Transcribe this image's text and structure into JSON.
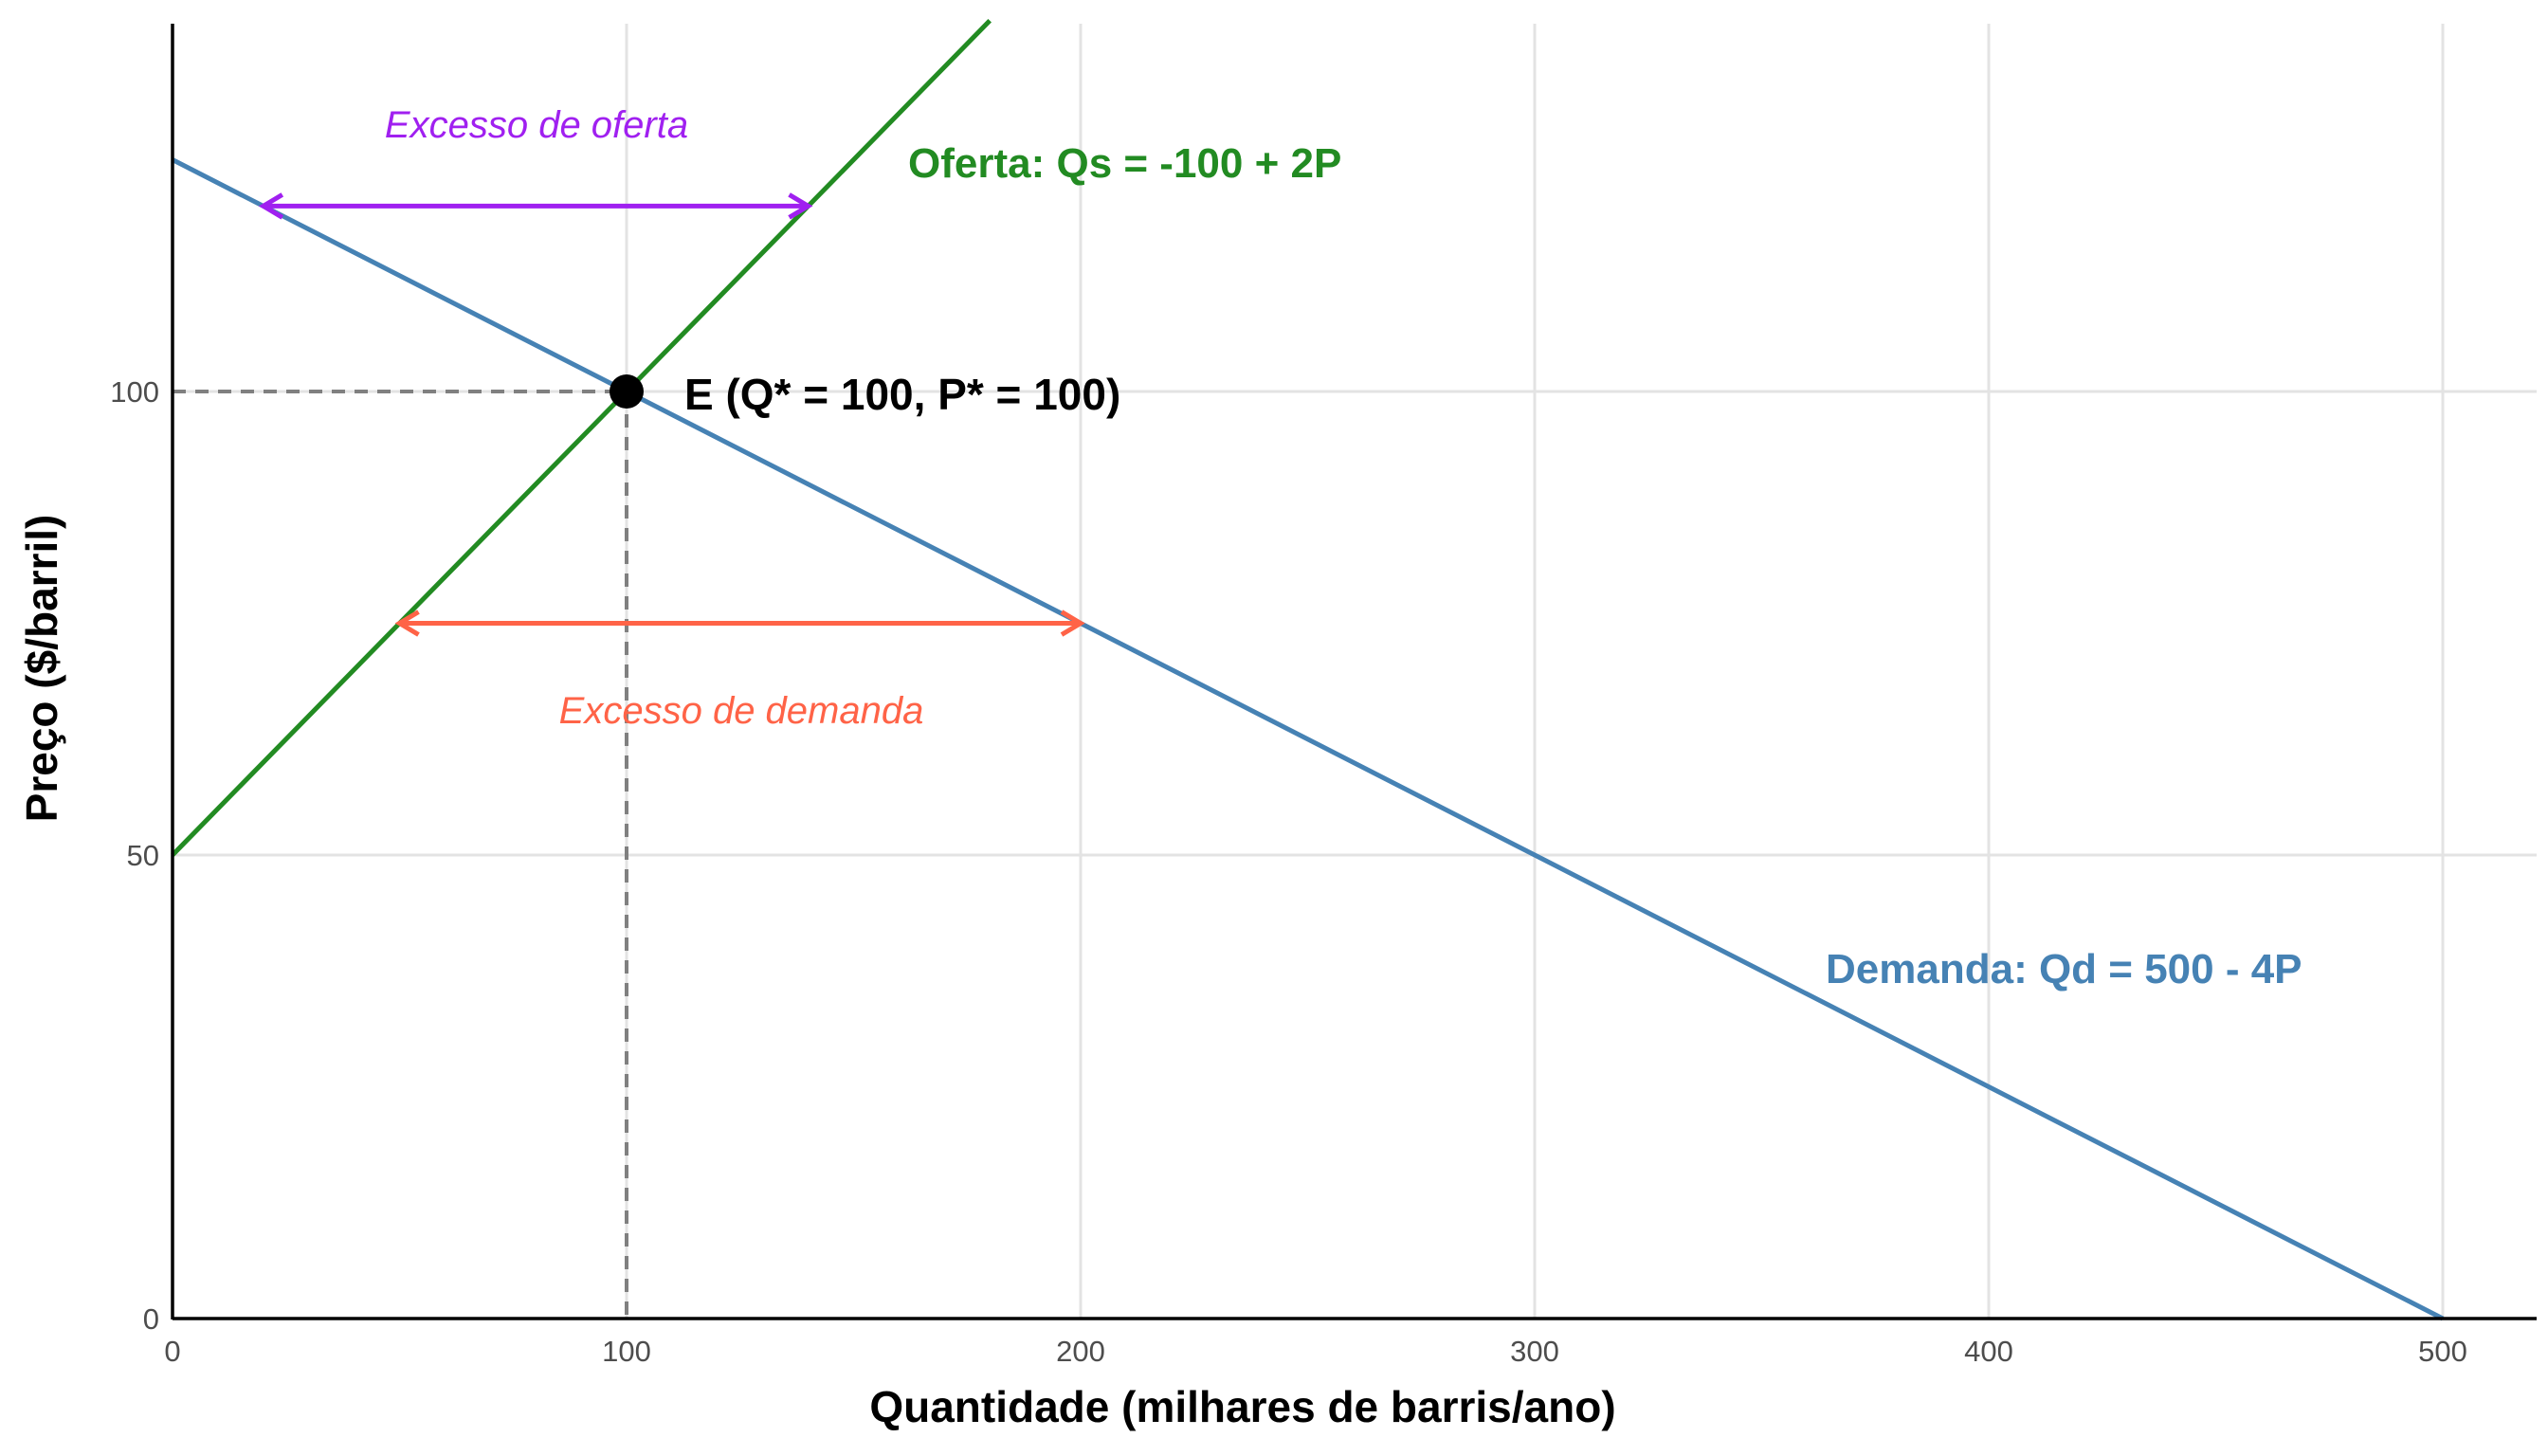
{
  "chart_data": {
    "type": "line",
    "xlabel": "Quantidade (milhares de barris/ano)",
    "ylabel": "Preço ($/barril)",
    "xlim": [
      0,
      520
    ],
    "ylim": [
      0,
      140
    ],
    "x_ticks": [
      0,
      100,
      200,
      300,
      400,
      500
    ],
    "y_ticks": [
      0,
      50,
      100
    ],
    "grid": true,
    "colors": {
      "supply": "#228B22",
      "demand": "#4682B4",
      "excess_supply": "#A020F0",
      "excess_demand": "#FF6347",
      "guide": "#808080",
      "point": "#000000"
    },
    "series": [
      {
        "name": "Oferta: Qs = -100 + 2P",
        "key": "supply",
        "x": [
          0,
          180
        ],
        "y": [
          50,
          140
        ]
      },
      {
        "name": "Demanda: Qd = 500 - 4P",
        "key": "demand",
        "x": [
          0,
          500
        ],
        "y": [
          125,
          0
        ]
      }
    ],
    "equilibrium": {
      "label": "E (Q* = 100, P* = 100)",
      "x": 100,
      "y": 100
    },
    "excess": [
      {
        "label": "Excesso de oferta",
        "key": "excess_supply",
        "price": 120,
        "from_q": 20,
        "to_q": 140
      },
      {
        "label": "Excesso de demanda",
        "key": "excess_demand",
        "price": 75,
        "from_q": 50,
        "to_q": 200
      }
    ]
  }
}
